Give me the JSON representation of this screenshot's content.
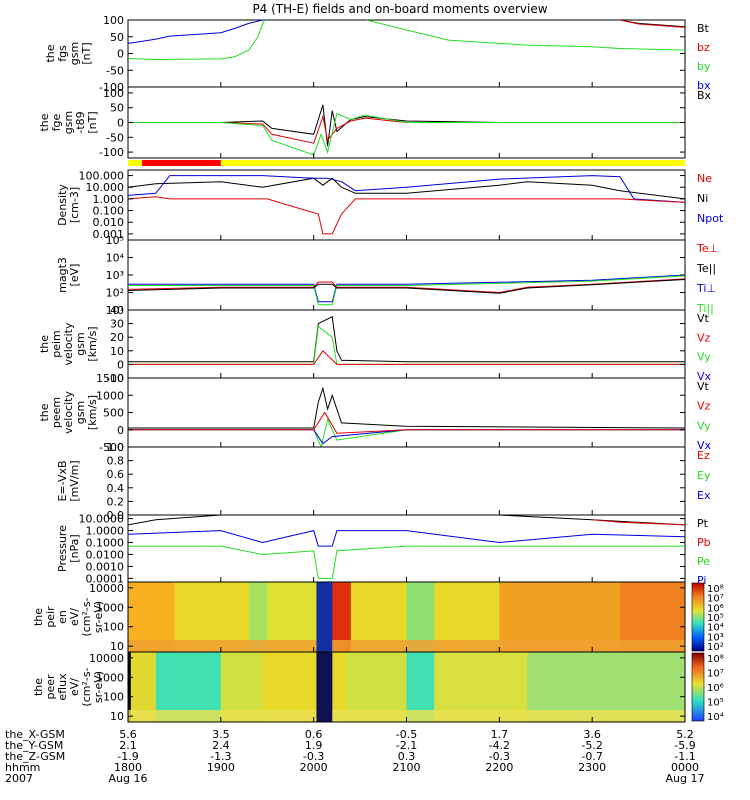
{
  "title": "P4 (TH-E) fields and on-board moments overview",
  "colors": {
    "black": "#000000",
    "red": "#e00000",
    "green": "#22dd22",
    "blue": "#0000e0",
    "yellow": "#ffff00",
    "bar_red": "#ff0000"
  },
  "chart_data": [
    {
      "id": "fgs",
      "type": "line",
      "ylabel": [
        "the",
        "fgs",
        "gsm",
        "[nT]"
      ],
      "ylim": [
        -100,
        100
      ],
      "ticks": [
        "100",
        "50",
        "0",
        "-50",
        "-100"
      ],
      "tick_values": [
        100,
        50,
        0,
        -50,
        -100
      ],
      "legend": [
        {
          "label": "Bt",
          "color": "black"
        },
        {
          "label": "bz",
          "color": "red"
        },
        {
          "label": "by",
          "color": "green"
        },
        {
          "label": "bx",
          "color": "blue"
        }
      ],
      "series": [
        {
          "name": "bx",
          "color": "blue",
          "x": [
            1800,
            1815,
            1830,
            1845,
            1900,
            1915,
            1930,
            1945,
            1948
          ],
          "y": [
            30,
            36,
            43,
            52,
            62,
            75,
            90,
            100,
            100
          ]
        },
        {
          "name": "by",
          "color": "green",
          "x": [
            1800,
            1830,
            1900,
            1915,
            1930,
            1940,
            1946,
            1948
          ],
          "y": [
            -15,
            -18,
            -16,
            -10,
            10,
            50,
            95,
            100
          ]
        },
        {
          "name": "by_late",
          "color": "green",
          "x": [
            2057,
            2115,
            2145,
            2200,
            2230,
            2300,
            2330,
            2400
          ],
          "y": [
            100,
            60,
            40,
            30,
            25,
            20,
            15,
            10
          ]
        },
        {
          "name": "Bt_late",
          "color": "black",
          "x": [
            2330,
            2350,
            2400
          ],
          "y": [
            100,
            90,
            80
          ]
        },
        {
          "name": "bz_late",
          "color": "red",
          "x": [
            2330,
            2350,
            2400
          ],
          "y": [
            100,
            88,
            78
          ]
        }
      ]
    },
    {
      "id": "fge",
      "type": "line",
      "ylabel": [
        "the",
        "fge",
        "gsm",
        "-t89",
        "[nT]"
      ],
      "ylim": [
        -120,
        120
      ],
      "ticks": [
        "100",
        "50",
        "0",
        "-50",
        "-100"
      ],
      "tick_values": [
        100,
        50,
        0,
        -50,
        -100
      ],
      "legend": [
        {
          "label": "Bx",
          "color": "black"
        }
      ],
      "series": [
        {
          "name": "Bx",
          "color": "black",
          "x": [
            1800,
            1900,
            1945,
            1955,
            2000,
            2010,
            2015,
            2020,
            2025,
            2040,
            2055,
            2100,
            2200,
            2300,
            2400
          ],
          "y": [
            0,
            0,
            5,
            -20,
            -40,
            60,
            -80,
            40,
            -30,
            10,
            20,
            5,
            0,
            0,
            0
          ]
        },
        {
          "name": "Bz",
          "color": "red",
          "x": [
            1800,
            1900,
            1945,
            1955,
            2000,
            2010,
            2015,
            2025,
            2040,
            2055,
            2100,
            2200,
            2400
          ],
          "y": [
            0,
            0,
            -5,
            -40,
            -70,
            20,
            -60,
            -20,
            5,
            15,
            0,
            0,
            0
          ]
        },
        {
          "name": "By",
          "color": "green",
          "x": [
            1800,
            1900,
            1945,
            1955,
            2000,
            2008,
            2015,
            2025,
            2040,
            2055,
            2100,
            2200,
            2400
          ],
          "y": [
            0,
            0,
            -10,
            -60,
            -110,
            -40,
            -100,
            30,
            10,
            25,
            0,
            0,
            0
          ]
        }
      ]
    },
    {
      "id": "density",
      "type": "line",
      "log": true,
      "ylabel": [
        "Density",
        "[cm-3]"
      ],
      "ylim": [
        0.0003,
        300
      ],
      "ticks": [
        "100.000",
        "10.000",
        "1.000",
        "0.100",
        "0.010",
        "0.001"
      ],
      "tick_values": [
        100,
        10,
        1,
        0.1,
        0.01,
        0.001
      ],
      "legend": [
        {
          "label": "Ne",
          "color": "red"
        },
        {
          "label": "Ni",
          "color": "black"
        },
        {
          "label": "Npot",
          "color": "blue"
        }
      ],
      "series": [
        {
          "name": "Ni",
          "color": "black",
          "x": [
            1800,
            1830,
            1900,
            1945,
            2000,
            2010,
            2020,
            2030,
            2045,
            2100,
            2200,
            2230,
            2300,
            2330,
            2400
          ],
          "y": [
            10,
            20,
            30,
            10,
            60,
            15,
            60,
            10,
            3,
            3,
            15,
            30,
            15,
            5,
            1
          ]
        },
        {
          "name": "Npot",
          "color": "blue",
          "x": [
            1800,
            1830,
            1845,
            1900,
            1945,
            2000,
            2015,
            2030,
            2045,
            2100,
            2200,
            2300,
            2330,
            2345,
            2400
          ],
          "y": [
            2,
            3,
            100,
            100,
            100,
            60,
            60,
            30,
            5,
            10,
            50,
            100,
            80,
            1,
            0.5
          ]
        },
        {
          "name": "Ne",
          "color": "red",
          "x": [
            1800,
            1830,
            1845,
            1900,
            1930,
            1950,
            2005,
            2010,
            2020,
            2030,
            2045,
            2100,
            2200,
            2230,
            2300,
            2330,
            2400
          ],
          "y": [
            1,
            1.5,
            1,
            1,
            1,
            1,
            0.05,
            0.001,
            0.001,
            0.05,
            1,
            1,
            1,
            1,
            1,
            1,
            0.5
          ]
        }
      ]
    },
    {
      "id": "temp",
      "type": "line",
      "log": true,
      "ylabel": [
        "magt3",
        "[eV]"
      ],
      "ylim": [
        10,
        100000
      ],
      "ticks": [
        "10⁵",
        "10⁴",
        "10³",
        "10²",
        "10¹"
      ],
      "tick_values": [
        100000,
        10000,
        1000,
        100,
        10
      ],
      "legend": [
        {
          "label": "Te⊥",
          "color": "red"
        },
        {
          "label": "Te||",
          "color": "black"
        },
        {
          "label": "Ti⊥",
          "color": "blue"
        },
        {
          "label": "Ti||",
          "color": "green"
        }
      ],
      "series": [
        {
          "name": "Ti",
          "color": "blue",
          "x": [
            1800,
            1900,
            2000,
            2005,
            2020,
            2025,
            2100,
            2300,
            2400
          ],
          "y": [
            300,
            300,
            300,
            30,
            30,
            300,
            300,
            500,
            1000
          ]
        },
        {
          "name": "Ti_par",
          "color": "green",
          "x": [
            1800,
            1900,
            2000,
            2005,
            2020,
            2025,
            2100,
            2300,
            2400
          ],
          "y": [
            250,
            250,
            250,
            20,
            20,
            250,
            250,
            450,
            900
          ]
        },
        {
          "name": "Te",
          "color": "red",
          "x": [
            1800,
            1900,
            2000,
            2005,
            2020,
            2025,
            2100,
            2200,
            2230,
            2300,
            2400
          ],
          "y": [
            150,
            200,
            200,
            400,
            400,
            200,
            200,
            100,
            200,
            300,
            600
          ]
        },
        {
          "name": "Te_par",
          "color": "black",
          "x": [
            1800,
            1900,
            2000,
            2005,
            2020,
            2025,
            2100,
            2200,
            2230,
            2300,
            2400
          ],
          "y": [
            130,
            180,
            180,
            300,
            300,
            180,
            180,
            90,
            180,
            280,
            550
          ]
        }
      ]
    },
    {
      "id": "peim",
      "type": "line",
      "ylabel": [
        "the",
        "peim",
        "velocity",
        "gsm",
        "[km/s]"
      ],
      "ylim": [
        -10,
        40
      ],
      "ticks": [
        "40",
        "30",
        "20",
        "10",
        "0",
        "-10"
      ],
      "tick_values": [
        40,
        30,
        20,
        10,
        0,
        -10
      ],
      "legend": [
        {
          "label": "Vt",
          "color": "black"
        },
        {
          "label": "Vz",
          "color": "red"
        },
        {
          "label": "Vy",
          "color": "green"
        },
        {
          "label": "Vx",
          "color": "blue"
        }
      ],
      "series": [
        {
          "name": "Vt",
          "color": "black",
          "x": [
            1800,
            2000,
            2005,
            2020,
            2025,
            2030,
            2100,
            2400
          ],
          "y": [
            2,
            2,
            30,
            35,
            10,
            3,
            2,
            2
          ]
        },
        {
          "name": "Vy",
          "color": "green",
          "x": [
            1800,
            2000,
            2005,
            2020,
            2025,
            2100,
            2400
          ],
          "y": [
            0,
            0,
            28,
            20,
            0,
            0,
            0
          ]
        },
        {
          "name": "Vz",
          "color": "red",
          "x": [
            1800,
            2000,
            2010,
            2025,
            2100,
            2400
          ],
          "y": [
            0,
            0,
            10,
            0,
            0,
            0
          ]
        }
      ]
    },
    {
      "id": "peem",
      "type": "line",
      "ylabel": [
        "the",
        "peem",
        "velocity",
        "gsm",
        "[km/s]"
      ],
      "ylim": [
        -500,
        1500
      ],
      "ticks": [
        "1500",
        "1000",
        "500",
        "0",
        "-500"
      ],
      "tick_values": [
        1500,
        1000,
        500,
        0,
        -500
      ],
      "legend": [
        {
          "label": "Vt",
          "color": "black"
        },
        {
          "label": "Vz",
          "color": "red"
        },
        {
          "label": "Vy",
          "color": "green"
        },
        {
          "label": "Vx",
          "color": "blue"
        }
      ],
      "series": [
        {
          "name": "Vt",
          "color": "black",
          "x": [
            1800,
            2000,
            2005,
            2010,
            2015,
            2020,
            2030,
            2100,
            2400
          ],
          "y": [
            50,
            50,
            800,
            1200,
            600,
            1000,
            200,
            100,
            50
          ]
        },
        {
          "name": "Vy",
          "color": "green",
          "x": [
            1800,
            2000,
            2008,
            2015,
            2025,
            2100,
            2400
          ],
          "y": [
            0,
            0,
            -500,
            300,
            -300,
            0,
            0
          ]
        },
        {
          "name": "Vx",
          "color": "blue",
          "x": [
            1800,
            2000,
            2010,
            2020,
            2100,
            2400
          ],
          "y": [
            0,
            0,
            -400,
            -200,
            0,
            0
          ]
        },
        {
          "name": "Vz",
          "color": "red",
          "x": [
            1800,
            2000,
            2012,
            2025,
            2100,
            2400
          ],
          "y": [
            0,
            0,
            500,
            -100,
            0,
            0
          ]
        }
      ]
    },
    {
      "id": "efield",
      "type": "line",
      "ylabel": [
        "E=-VxB",
        "[mV/m]"
      ],
      "ylim": [
        0,
        1
      ],
      "ticks": [
        "1.0",
        "0.8",
        "0.6",
        "0.4",
        "0.2",
        "0.0"
      ],
      "tick_values": [
        1,
        0.8,
        0.6,
        0.4,
        0.2,
        0
      ],
      "legend": [
        {
          "label": "Ez",
          "color": "red"
        },
        {
          "label": "Ey",
          "color": "green"
        },
        {
          "label": "Ex",
          "color": "blue"
        }
      ],
      "series": []
    },
    {
      "id": "pressure",
      "type": "line",
      "log": true,
      "ylabel": [
        "Pressure",
        "[nPa]"
      ],
      "ylim": [
        5e-05,
        20
      ],
      "ticks": [
        "10.0000",
        "1.0000",
        "0.1000",
        "0.0100",
        "0.0010",
        "0.0001"
      ],
      "tick_values": [
        10,
        1,
        0.1,
        0.01,
        0.001,
        0.0001
      ],
      "legend": [
        {
          "label": "Pt",
          "color": "black"
        },
        {
          "label": "Pb",
          "color": "red"
        },
        {
          "label": "Pe",
          "color": "green"
        },
        {
          "label": "Pi",
          "color": "blue"
        }
      ],
      "series": [
        {
          "name": "Pt",
          "color": "black",
          "x": [
            1800,
            1830,
            1900,
            1930,
            1945,
            2000,
            2100,
            2130,
            2200,
            2300,
            2400
          ],
          "y": [
            3,
            8,
            20,
            20,
            20,
            20,
            20,
            20,
            20,
            8,
            3
          ]
        },
        {
          "name": "Pb",
          "color": "red",
          "x": [
            2300,
            2330,
            2400
          ],
          "y": [
            8,
            5,
            3
          ]
        },
        {
          "name": "Pi",
          "color": "blue",
          "x": [
            1800,
            1900,
            1945,
            2000,
            2005,
            2020,
            2025,
            2100,
            2200,
            2300,
            2400
          ],
          "y": [
            0.5,
            1,
            0.1,
            1,
            0.05,
            0.05,
            1,
            1,
            0.1,
            0.5,
            0.3
          ]
        },
        {
          "name": "Pe",
          "color": "green",
          "x": [
            1800,
            1900,
            1945,
            2000,
            2005,
            2020,
            2025,
            2100,
            2200,
            2300,
            2400
          ],
          "y": [
            0.05,
            0.05,
            0.01,
            0.02,
            0.0001,
            0.0001,
            0.02,
            0.05,
            0.05,
            0.05,
            0.05
          ]
        }
      ]
    },
    {
      "id": "peir",
      "type": "heatmap",
      "ylabel": [
        "the",
        "peir",
        "en",
        "eV/",
        "(cm²-s-",
        "sr-eV)"
      ],
      "ylim": [
        5,
        20000
      ],
      "ticks": [
        "10000",
        "1000",
        "100",
        "10"
      ],
      "tick_values": [
        10000,
        1000,
        100,
        10
      ],
      "colorbar_ticks": [
        "10⁸",
        "10⁷",
        "10⁶",
        "10⁵",
        "10⁴",
        "10³",
        "10²"
      ]
    },
    {
      "id": "peer",
      "type": "heatmap",
      "ylabel": [
        "the",
        "peer",
        "eflux",
        "eV/",
        "(cm²-s-",
        "sr-eV)"
      ],
      "ylim": [
        5,
        20000
      ],
      "ticks": [
        "10000",
        "1000",
        "100",
        "10"
      ],
      "tick_values": [
        10000,
        1000,
        100,
        10
      ],
      "colorbar_ticks": [
        "10⁸",
        "10⁷",
        "10⁶",
        "10⁵",
        "10⁴"
      ]
    }
  ],
  "time_axis": {
    "row_labels": [
      "the_X-GSM",
      "the_Y-GSM",
      "the_Z-GSM",
      "hhmm",
      "2007"
    ],
    "columns": [
      {
        "t": 1800,
        "vals": [
          "5.6",
          "2.1",
          "-1.9",
          "1800",
          "Aug 16"
        ]
      },
      {
        "t": 1900,
        "vals": [
          "3.5",
          "2.4",
          "-1.3",
          "1900",
          ""
        ]
      },
      {
        "t": 2000,
        "vals": [
          "0.6",
          "1.9",
          "-0.3",
          "2000",
          ""
        ]
      },
      {
        "t": 2100,
        "vals": [
          "-0.5",
          "-2.1",
          "0.3",
          "2100",
          ""
        ]
      },
      {
        "t": 2200,
        "vals": [
          "1.7",
          "-4.2",
          "-0.3",
          "2200",
          ""
        ]
      },
      {
        "t": 2300,
        "vals": [
          "3.6",
          "-5.2",
          "-0.7",
          "2300",
          ""
        ]
      },
      {
        "t": 2400,
        "vals": [
          "5.2",
          "-5.9",
          "-1.1",
          "0000",
          "Aug 17"
        ]
      }
    ]
  }
}
